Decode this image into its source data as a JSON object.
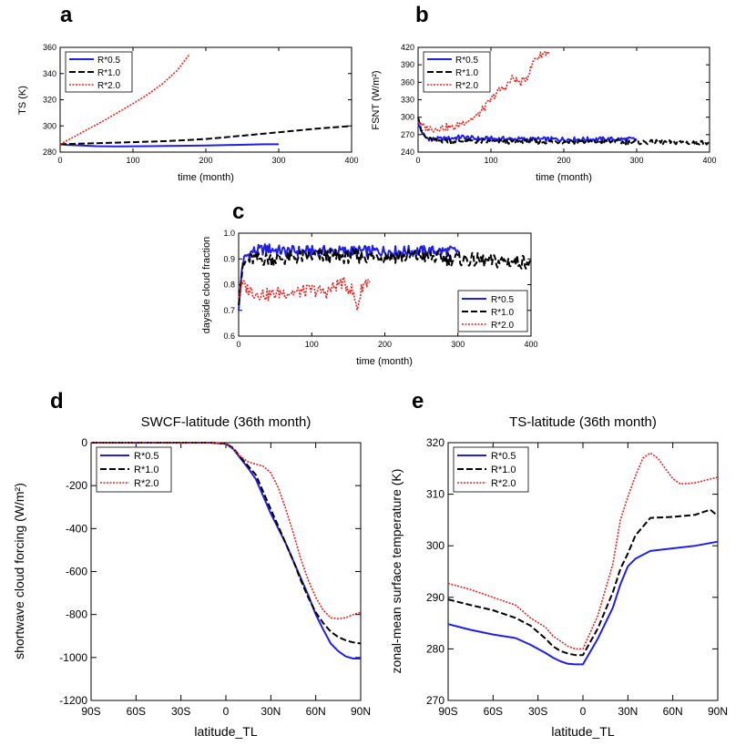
{
  "colors": {
    "R05": "#1f1fe6",
    "R10": "#000000",
    "R20": "#e8231f"
  },
  "chart_data": [
    {
      "panel": "a",
      "type": "line",
      "title": "",
      "xlabel": "time (month)",
      "ylabel": "TS (K)",
      "xlim": [
        0,
        400
      ],
      "ylim": [
        280,
        360
      ],
      "xticks": [
        0,
        100,
        200,
        300,
        400
      ],
      "yticks": [
        280,
        300,
        320,
        340,
        360
      ],
      "legend": [
        "R*0.5",
        "R*1.0",
        "R*2.0"
      ],
      "legend_position": "top-left",
      "series": [
        {
          "name": "R*0.5",
          "x": [
            0,
            10,
            30,
            50,
            80,
            120,
            160,
            200,
            240,
            260,
            280,
            300
          ],
          "y": [
            286,
            285.5,
            285,
            284.5,
            284.3,
            284.5,
            284.8,
            285,
            285.5,
            285.8,
            286,
            286
          ]
        },
        {
          "name": "R*1.0",
          "x": [
            0,
            20,
            50,
            100,
            150,
            200,
            250,
            300,
            350,
            400
          ],
          "y": [
            286,
            286.3,
            286.8,
            287.6,
            288.5,
            290,
            292.5,
            295.2,
            297.8,
            300
          ]
        },
        {
          "name": "R*2.0",
          "x": [
            0,
            20,
            40,
            60,
            80,
            100,
            120,
            140,
            160,
            178
          ],
          "y": [
            286,
            292,
            298,
            304,
            310.5,
            317,
            324,
            332,
            342,
            355
          ]
        }
      ]
    },
    {
      "panel": "b",
      "type": "line",
      "title": "",
      "xlabel": "time (month)",
      "ylabel": "FSNT (W/m²)",
      "xlim": [
        0,
        400
      ],
      "ylim": [
        240,
        420
      ],
      "xticks": [
        0,
        100,
        200,
        300,
        400
      ],
      "yticks": [
        240,
        270,
        300,
        330,
        360,
        390,
        420
      ],
      "legend": [
        "R*0.5",
        "R*1.0",
        "R*2.0"
      ],
      "legend_position": "top-left",
      "series": [
        {
          "name": "R*0.5",
          "x": [
            0,
            5,
            10,
            20,
            40,
            60,
            80,
            100,
            150,
            200,
            250,
            300
          ],
          "y": [
            290,
            275,
            265,
            262,
            263,
            266,
            263,
            263,
            262,
            262,
            262,
            262
          ]
        },
        {
          "name": "R*1.0",
          "x": [
            0,
            5,
            10,
            20,
            50,
            100,
            150,
            200,
            250,
            300,
            350,
            400
          ],
          "y": [
            300,
            275,
            265,
            260,
            259,
            258,
            258,
            258,
            258,
            257,
            257,
            256
          ]
        },
        {
          "name": "R*2.0",
          "x": [
            0,
            5,
            10,
            20,
            40,
            50,
            60,
            70,
            80,
            90,
            100,
            110,
            120,
            130,
            140,
            150,
            160,
            170,
            180
          ],
          "y": [
            292,
            285,
            282,
            280,
            283,
            282,
            290,
            296,
            301,
            315,
            330,
            345,
            352,
            368,
            358,
            370,
            400,
            408,
            413
          ]
        }
      ]
    },
    {
      "panel": "c",
      "type": "line",
      "title": "",
      "xlabel": "time (month)",
      "ylabel": "dayside cloud fraction",
      "xlim": [
        0,
        400
      ],
      "ylim": [
        0.6,
        1.0
      ],
      "xticks": [
        0,
        100,
        200,
        300,
        400
      ],
      "yticks": [
        0.6,
        0.7,
        0.8,
        0.9,
        1.0
      ],
      "legend": [
        "R*0.5",
        "R*1.0",
        "R*2.0"
      ],
      "legend_position": "bottom-right",
      "series": [
        {
          "name": "R*0.5",
          "x": [
            0,
            5,
            10,
            20,
            40,
            60,
            80,
            100,
            150,
            200,
            250,
            300
          ],
          "y": [
            0.7,
            0.88,
            0.91,
            0.93,
            0.94,
            0.93,
            0.93,
            0.93,
            0.93,
            0.93,
            0.93,
            0.93
          ]
        },
        {
          "name": "R*1.0",
          "x": [
            0,
            5,
            10,
            20,
            50,
            100,
            150,
            200,
            250,
            300,
            350,
            400
          ],
          "y": [
            0.72,
            0.86,
            0.89,
            0.9,
            0.9,
            0.91,
            0.91,
            0.91,
            0.91,
            0.9,
            0.89,
            0.89
          ]
        },
        {
          "name": "R*2.0",
          "x": [
            0,
            5,
            10,
            20,
            40,
            60,
            80,
            100,
            120,
            140,
            155,
            162,
            170,
            180
          ],
          "y": [
            0.75,
            0.8,
            0.79,
            0.77,
            0.76,
            0.77,
            0.77,
            0.78,
            0.77,
            0.81,
            0.78,
            0.71,
            0.8,
            0.82
          ]
        }
      ]
    },
    {
      "panel": "d",
      "type": "line",
      "title": "SWCF-latitude (36th month)",
      "xlabel": "latitude_TL",
      "ylabel": "shortwave cloud forcing (W/m²)",
      "xlim": [
        -90,
        90
      ],
      "ylim": [
        -1200,
        0
      ],
      "xticks": [
        -90,
        -60,
        -30,
        0,
        30,
        60,
        90
      ],
      "xticklabels": [
        "90S",
        "60S",
        "30S",
        "0",
        "30N",
        "60N",
        "90N"
      ],
      "yticks": [
        -1200,
        -1000,
        -800,
        -600,
        -400,
        -200,
        0
      ],
      "legend": [
        "R*0.5",
        "R*1.0",
        "R*2.0"
      ],
      "legend_position": "top-left",
      "series": [
        {
          "name": "R*0.5",
          "x": [
            -90,
            -60,
            -30,
            -10,
            0,
            5,
            10,
            15,
            20,
            25,
            30,
            35,
            40,
            45,
            50,
            55,
            60,
            65,
            70,
            75,
            80,
            85,
            90
          ],
          "y": [
            0,
            0,
            0,
            0,
            -5,
            -30,
            -75,
            -120,
            -170,
            -250,
            -330,
            -400,
            -470,
            -550,
            -630,
            -710,
            -800,
            -870,
            -935,
            -970,
            -995,
            -1005,
            -1005
          ]
        },
        {
          "name": "R*1.0",
          "x": [
            -90,
            -60,
            -30,
            -10,
            0,
            5,
            10,
            15,
            20,
            25,
            30,
            35,
            40,
            45,
            50,
            55,
            60,
            65,
            70,
            75,
            80,
            85,
            90
          ],
          "y": [
            0,
            0,
            0,
            0,
            -5,
            -25,
            -70,
            -110,
            -150,
            -230,
            -310,
            -390,
            -470,
            -550,
            -640,
            -720,
            -790,
            -840,
            -880,
            -905,
            -920,
            -930,
            -935
          ]
        },
        {
          "name": "R*2.0",
          "x": [
            -90,
            -60,
            -30,
            -10,
            0,
            5,
            10,
            15,
            20,
            25,
            30,
            35,
            40,
            45,
            50,
            55,
            60,
            65,
            70,
            75,
            80,
            85,
            90
          ],
          "y": [
            0,
            0,
            0,
            0,
            -5,
            -30,
            -65,
            -90,
            -100,
            -110,
            -140,
            -210,
            -310,
            -420,
            -540,
            -640,
            -720,
            -780,
            -815,
            -820,
            -815,
            -800,
            -790
          ]
        }
      ]
    },
    {
      "panel": "e",
      "type": "line",
      "title": "TS-latitude (36th month)",
      "xlabel": "latitude_TL",
      "ylabel": "zonal-mean surface temperature (K)",
      "xlim": [
        -90,
        90
      ],
      "ylim": [
        270,
        320
      ],
      "xticks": [
        -90,
        -60,
        -30,
        0,
        30,
        60,
        90
      ],
      "xticklabels": [
        "90S",
        "60S",
        "30S",
        "0",
        "30N",
        "60N",
        "90N"
      ],
      "yticks": [
        270,
        280,
        290,
        300,
        310,
        320
      ],
      "legend": [
        "R*0.5",
        "R*1.0",
        "R*2.0"
      ],
      "legend_position": "top-left",
      "series": [
        {
          "name": "R*0.5",
          "x": [
            -90,
            -75,
            -60,
            -45,
            -35,
            -25,
            -20,
            -15,
            -10,
            -5,
            0,
            10,
            20,
            25,
            30,
            35,
            45,
            60,
            75,
            90
          ],
          "y": [
            284.8,
            283.7,
            282.8,
            282.1,
            280.8,
            279.2,
            278.3,
            277.6,
            277.1,
            277,
            277,
            282,
            288,
            292.5,
            296,
            297.5,
            299,
            299.5,
            300,
            300.8
          ]
        },
        {
          "name": "R*1.0",
          "x": [
            -90,
            -75,
            -60,
            -45,
            -35,
            -25,
            -20,
            -15,
            -10,
            -5,
            0,
            10,
            20,
            25,
            30,
            35,
            45,
            60,
            75,
            85,
            90
          ],
          "y": [
            289.6,
            288.5,
            287.5,
            286,
            284.5,
            282,
            280.5,
            279.6,
            279.1,
            278.8,
            278.8,
            284,
            291,
            295.5,
            298.5,
            302,
            305.4,
            305.6,
            306,
            307,
            305.8
          ]
        },
        {
          "name": "R*2.0",
          "x": [
            -90,
            -75,
            -60,
            -45,
            -35,
            -25,
            -20,
            -15,
            -10,
            -5,
            0,
            10,
            20,
            25,
            30,
            35,
            40,
            45,
            50,
            55,
            60,
            65,
            75,
            90
          ],
          "y": [
            292.7,
            291.5,
            290,
            288.5,
            286,
            284.2,
            282.5,
            281.5,
            280.5,
            280,
            280,
            286.5,
            296.5,
            305,
            309.5,
            313.5,
            317,
            318,
            317,
            315,
            313,
            312,
            312.2,
            313.3
          ]
        }
      ]
    }
  ]
}
